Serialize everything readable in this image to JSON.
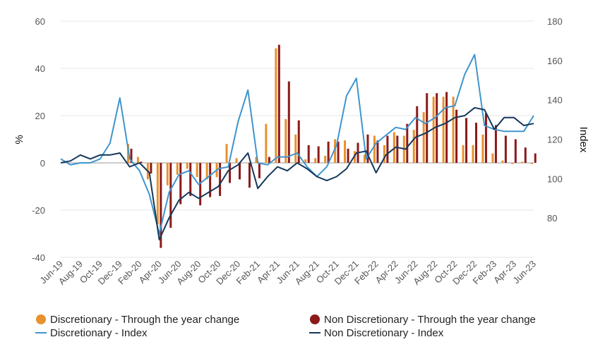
{
  "chart_data": {
    "type": "bar",
    "ylabel": "%",
    "y2label": "Index",
    "ylim": [
      -40,
      60
    ],
    "y2lim": [
      60,
      180
    ],
    "yticks": [
      -40,
      -20,
      0,
      20,
      40,
      60
    ],
    "y2ticks": [
      80,
      100,
      120,
      140,
      160,
      180
    ],
    "grid": true,
    "legend_position": "bottom",
    "x": [
      "Jun-19",
      "Jul-19",
      "Aug-19",
      "Sep-19",
      "Oct-19",
      "Nov-19",
      "Dec-19",
      "Jan-20",
      "Feb-20",
      "Mar-20",
      "Apr-20",
      "May-20",
      "Jun-20",
      "Jul-20",
      "Aug-20",
      "Sep-20",
      "Oct-20",
      "Nov-20",
      "Dec-20",
      "Jan-21",
      "Feb-21",
      "Mar-21",
      "Apr-21",
      "May-21",
      "Jun-21",
      "Jul-21",
      "Aug-21",
      "Sep-21",
      "Oct-21",
      "Nov-21",
      "Dec-21",
      "Jan-22",
      "Feb-22",
      "Mar-22",
      "Apr-22",
      "May-22",
      "Jun-22",
      "Jul-22",
      "Aug-22",
      "Sep-22",
      "Oct-22",
      "Nov-22",
      "Dec-22",
      "Jan-23",
      "Feb-23",
      "Mar-23",
      "Apr-23",
      "May-23",
      "Jun-23"
    ],
    "x_tick_labels": [
      "Jun-19",
      "Aug-19",
      "Oct-19",
      "Dec-19",
      "Feb-20",
      "Apr-20",
      "Jun-20",
      "Aug-20",
      "Oct-20",
      "Dec-20",
      "Feb-21",
      "Apr-21",
      "Jun-21",
      "Aug-21",
      "Oct-21",
      "Dec-21",
      "Feb-22",
      "Apr-22",
      "Jun-22",
      "Aug-22",
      "Oct-22",
      "Dec-22",
      "Feb-23",
      "Apr-23",
      "Jun-23"
    ],
    "series": [
      {
        "name": "Discretionary - Through the year change",
        "type": "bar",
        "axis": "left",
        "color": "#e8912d",
        "values": [
          null,
          null,
          null,
          null,
          null,
          null,
          null,
          8,
          2.5,
          -7,
          -26,
          -9.5,
          -5,
          -2.5,
          -6,
          -7,
          -6,
          8,
          2,
          0,
          2.5,
          16.5,
          48.5,
          18.5,
          12,
          1.5,
          2,
          3,
          10,
          9.5,
          5,
          3.5,
          11.5,
          7.5,
          13,
          11.5,
          14,
          21.5,
          28,
          28,
          28,
          7.5,
          7.5,
          12,
          4,
          1,
          -0.5,
          0.5,
          -0.5
        ]
      },
      {
        "name": "Non Discretionary - Through the year change",
        "type": "bar",
        "axis": "left",
        "color": "#8b1a1a",
        "values": [
          null,
          null,
          null,
          null,
          null,
          null,
          null,
          6,
          0.5,
          -4.5,
          -36,
          -27.5,
          -17.5,
          -14,
          -18,
          -14.5,
          -14,
          -8.5,
          -7,
          -10.5,
          -6.5,
          2.5,
          50,
          34.5,
          18,
          7.5,
          7,
          9,
          9,
          6,
          8.5,
          12,
          9.5,
          11.5,
          11.5,
          16.5,
          24,
          29.5,
          29.5,
          30,
          22.5,
          19,
          17,
          21,
          16,
          11.5,
          10,
          6.5,
          4
        ]
      },
      {
        "name": "Discretionary - Index",
        "type": "line",
        "axis": "right",
        "color": "#3e95cd",
        "values": [
          110,
          107,
          108,
          108,
          110,
          118,
          141,
          110,
          104,
          92,
          72,
          93,
          102,
          104,
          97,
          101,
          105,
          106,
          129,
          145,
          108,
          107,
          111,
          111,
          113,
          106,
          101,
          106,
          117,
          142,
          151,
          110,
          118,
          122,
          126,
          125,
          131,
          128,
          131,
          136,
          137,
          153,
          163,
          127,
          125,
          124,
          124,
          124,
          132
        ]
      },
      {
        "name": "Non Discretionary - Index",
        "type": "line",
        "axis": "right",
        "color": "#14375a",
        "values": [
          108,
          109,
          112,
          110,
          112,
          112,
          113,
          106,
          108,
          103,
          69,
          80,
          89,
          93,
          90,
          93,
          96,
          104,
          107,
          113,
          95,
          101,
          106,
          104,
          108,
          105,
          101,
          99,
          101,
          105,
          113,
          114,
          103,
          112,
          116,
          115,
          121,
          123,
          126,
          128,
          131,
          132,
          136,
          135,
          125,
          131,
          131,
          127,
          128
        ]
      }
    ]
  }
}
